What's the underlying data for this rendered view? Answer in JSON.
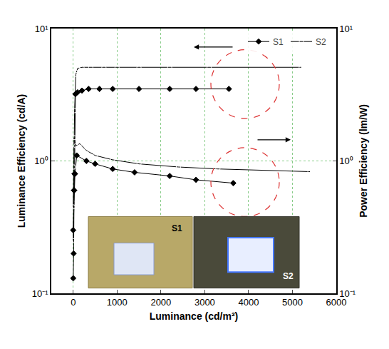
{
  "chart_data": {
    "type": "line",
    "x_label": "Luminance (cd/m²)",
    "y_label": "Luminance Efficiency (cd/A)",
    "y2_label": "Power Efficiency (lm/W)",
    "log": "y",
    "grid": true,
    "legend": "upper right",
    "xlim": [
      -500,
      6000
    ],
    "xticks": [
      0,
      1000,
      2000,
      3000,
      4000,
      5000,
      6000
    ],
    "ylim": [
      0.1,
      10
    ],
    "yticks": [
      {
        "value": 0.1,
        "label": "10⁻¹"
      },
      {
        "value": 1,
        "label": "10⁰"
      },
      {
        "value": 10,
        "label": "10¹"
      }
    ],
    "y2lim": [
      0.1,
      10
    ],
    "y2ticks": [
      {
        "value": 0.1,
        "label": "10⁻¹"
      },
      {
        "value": 1,
        "label": "10⁰"
      },
      {
        "value": 10,
        "label": "10¹"
      }
    ],
    "inset_labels": [
      "S1",
      "S2"
    ],
    "series": [
      {
        "name": "S1",
        "color": "#000000",
        "marker": "diamond",
        "axis": "y",
        "x": [
          0,
          10,
          20,
          30,
          50,
          100,
          200,
          350,
          600,
          900,
          1500,
          2200,
          2800,
          3550
        ],
        "values": [
          0.13,
          0.2,
          0.6,
          0.8,
          3.2,
          3.3,
          3.4,
          3.5,
          3.5,
          3.5,
          3.5,
          3.5,
          3.5,
          3.5
        ]
      },
      {
        "name": "S2",
        "color": "#000000",
        "marker": "circle-open",
        "axis": "y",
        "x": [
          0,
          10,
          20,
          30,
          60,
          100,
          200,
          400,
          700,
          1000,
          1500,
          2200,
          3100,
          5200
        ],
        "values": [
          0.25,
          0.48,
          0.9,
          2.4,
          4.5,
          5.0,
          5.1,
          5.1,
          5.1,
          5.1,
          5.1,
          5.1,
          5.1,
          5.1
        ]
      },
      {
        "name": "S1",
        "color": "#000000",
        "marker": "diamond",
        "axis": "y2",
        "x": [
          0,
          20,
          40,
          80,
          300,
          500,
          900,
          1400,
          2200,
          2800,
          3650
        ],
        "values": [
          0.3,
          0.6,
          0.8,
          1.1,
          1.0,
          0.95,
          0.87,
          0.82,
          0.77,
          0.72,
          0.68
        ]
      },
      {
        "name": "S2",
        "color": "#000000",
        "marker": "circle-open",
        "axis": "y2",
        "x": [
          0,
          10,
          20,
          60,
          150,
          300,
          500,
          900,
          1500,
          2400,
          3300,
          5400
        ],
        "values": [
          0.45,
          0.9,
          1.5,
          1.3,
          1.35,
          1.2,
          1.1,
          1.02,
          0.95,
          0.9,
          0.87,
          0.83
        ]
      }
    ]
  }
}
